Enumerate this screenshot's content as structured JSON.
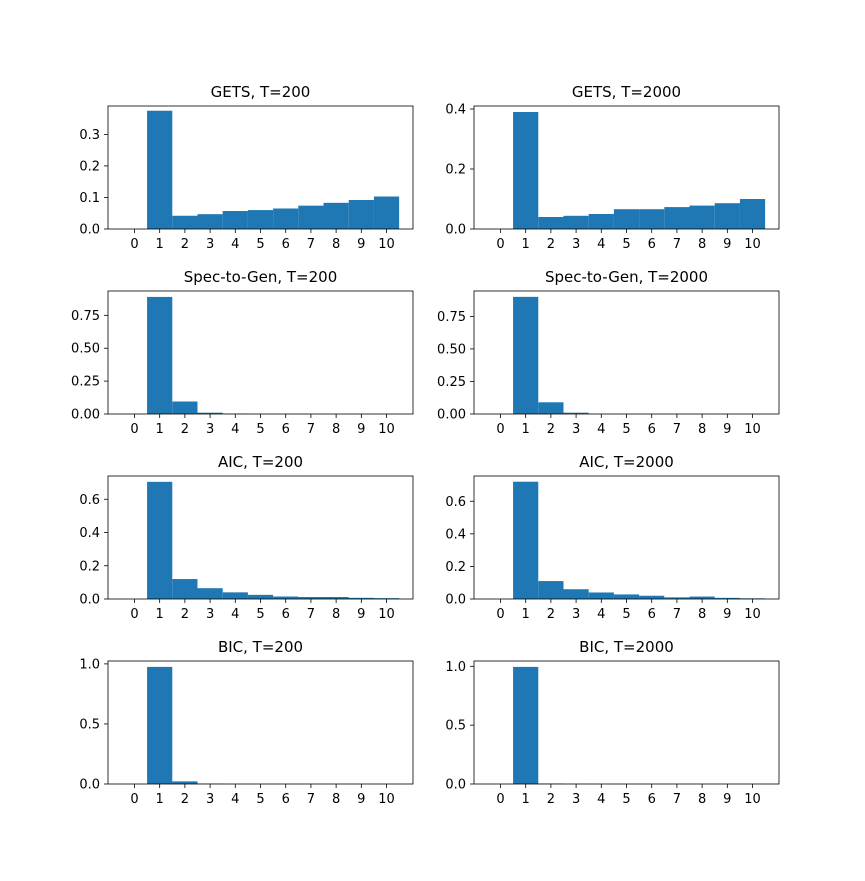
{
  "bar_color": "#1f77b4",
  "chart_data": [
    {
      "type": "bar",
      "title": "GETS, T=200",
      "categories": [
        "0",
        "1",
        "2",
        "3",
        "4",
        "5",
        "6",
        "7",
        "8",
        "9",
        "10"
      ],
      "values": [
        0,
        0.375,
        0.042,
        0.047,
        0.057,
        0.06,
        0.065,
        0.074,
        0.083,
        0.092,
        0.103
      ],
      "ylim": [
        0,
        0.39
      ],
      "yticks": [
        0.0,
        0.1,
        0.2,
        0.3
      ],
      "ytick_labels": [
        "0.0",
        "0.1",
        "0.2",
        "0.3"
      ],
      "xlabel": "",
      "ylabel": "",
      "grid": false
    },
    {
      "type": "bar",
      "title": "GETS, T=2000",
      "categories": [
        "0",
        "1",
        "2",
        "3",
        "4",
        "5",
        "6",
        "7",
        "8",
        "9",
        "10"
      ],
      "values": [
        0,
        0.39,
        0.04,
        0.044,
        0.05,
        0.066,
        0.066,
        0.073,
        0.078,
        0.086,
        0.1
      ],
      "ylim": [
        0,
        0.41
      ],
      "yticks": [
        0.0,
        0.2,
        0.4
      ],
      "ytick_labels": [
        "0.0",
        "0.2",
        "0.4"
      ],
      "xlabel": "",
      "ylabel": "",
      "grid": false
    },
    {
      "type": "bar",
      "title": "Spec-to-Gen, T=200",
      "categories": [
        "0",
        "1",
        "2",
        "3",
        "4",
        "5",
        "6",
        "7",
        "8",
        "9",
        "10"
      ],
      "values": [
        0,
        0.89,
        0.095,
        0.01,
        0.002,
        0,
        0,
        0,
        0,
        0,
        0
      ],
      "ylim": [
        0,
        0.935
      ],
      "yticks": [
        0.0,
        0.25,
        0.5,
        0.75
      ],
      "ytick_labels": [
        "0.00",
        "0.25",
        "0.50",
        "0.75"
      ],
      "xlabel": "",
      "ylabel": "",
      "grid": false
    },
    {
      "type": "bar",
      "title": "Spec-to-Gen, T=2000",
      "categories": [
        "0",
        "1",
        "2",
        "3",
        "4",
        "5",
        "6",
        "7",
        "8",
        "9",
        "10"
      ],
      "values": [
        0,
        0.9,
        0.09,
        0.01,
        0.001,
        0,
        0,
        0,
        0,
        0,
        0
      ],
      "ylim": [
        0,
        0.945
      ],
      "yticks": [
        0.0,
        0.25,
        0.5,
        0.75
      ],
      "ytick_labels": [
        "0.00",
        "0.25",
        "0.50",
        "0.75"
      ],
      "xlabel": "",
      "ylabel": "",
      "grid": false
    },
    {
      "type": "bar",
      "title": "AIC, T=200",
      "categories": [
        "0",
        "1",
        "2",
        "3",
        "4",
        "5",
        "6",
        "7",
        "8",
        "9",
        "10"
      ],
      "values": [
        0,
        0.705,
        0.12,
        0.065,
        0.04,
        0.025,
        0.015,
        0.012,
        0.012,
        0.007,
        0.005
      ],
      "ylim": [
        0,
        0.74
      ],
      "yticks": [
        0.0,
        0.2,
        0.4,
        0.6
      ],
      "ytick_labels": [
        "0.0",
        "0.2",
        "0.4",
        "0.6"
      ],
      "xlabel": "",
      "ylabel": "",
      "grid": false
    },
    {
      "type": "bar",
      "title": "AIC, T=2000",
      "categories": [
        "0",
        "1",
        "2",
        "3",
        "4",
        "5",
        "6",
        "7",
        "8",
        "9",
        "10"
      ],
      "values": [
        0,
        0.72,
        0.11,
        0.06,
        0.04,
        0.028,
        0.02,
        0.01,
        0.015,
        0.007,
        0.004
      ],
      "ylim": [
        0,
        0.755
      ],
      "yticks": [
        0.0,
        0.2,
        0.4,
        0.6
      ],
      "ytick_labels": [
        "0.0",
        "0.2",
        "0.4",
        "0.6"
      ],
      "xlabel": "",
      "ylabel": "",
      "grid": false
    },
    {
      "type": "bar",
      "title": "BIC, T=200",
      "categories": [
        "0",
        "1",
        "2",
        "3",
        "4",
        "5",
        "6",
        "7",
        "8",
        "9",
        "10"
      ],
      "values": [
        0,
        0.975,
        0.022,
        0.003,
        0,
        0,
        0,
        0,
        0,
        0,
        0
      ],
      "ylim": [
        0,
        1.024
      ],
      "yticks": [
        0.0,
        0.5,
        1.0
      ],
      "ytick_labels": [
        "0.0",
        "0.5",
        "1.0"
      ],
      "xlabel": "",
      "ylabel": "",
      "grid": false
    },
    {
      "type": "bar",
      "title": "BIC, T=2000",
      "categories": [
        "0",
        "1",
        "2",
        "3",
        "4",
        "5",
        "6",
        "7",
        "8",
        "9",
        "10"
      ],
      "values": [
        0,
        0.995,
        0.004,
        0.001,
        0,
        0,
        0,
        0,
        0,
        0,
        0
      ],
      "ylim": [
        0,
        1.045
      ],
      "yticks": [
        0.0,
        0.5,
        1.0
      ],
      "ytick_labels": [
        "0.0",
        "0.5",
        "1.0"
      ],
      "xlabel": "",
      "ylabel": "",
      "grid": false
    }
  ]
}
